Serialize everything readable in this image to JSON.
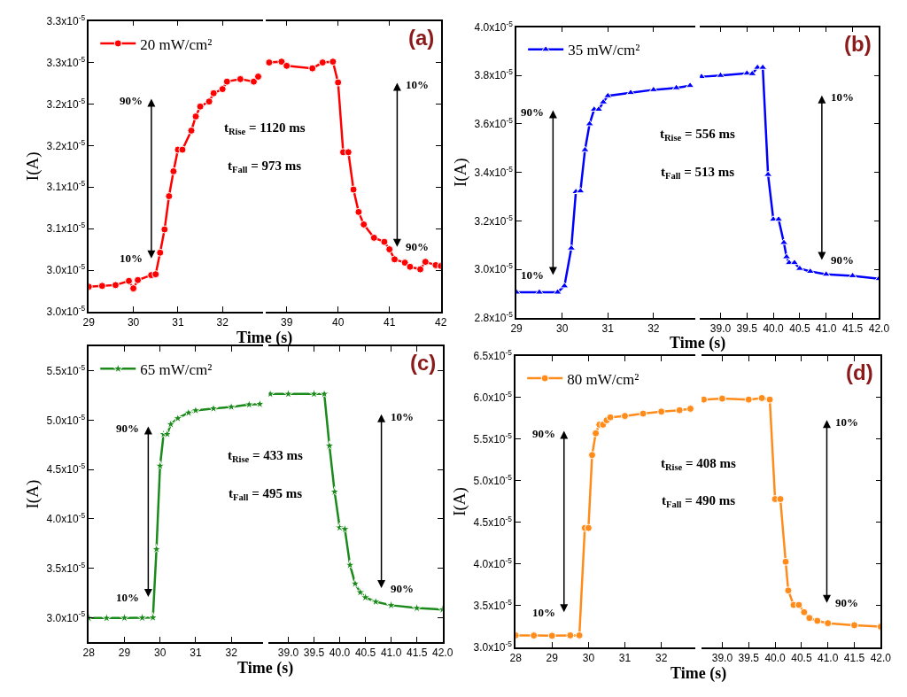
{
  "chart_data": [
    {
      "type": "line",
      "xlim": [
        29,
        32.9
      ],
      "xticks": [
        29,
        30,
        31,
        32
      ],
      "ylim": [
        2.975e-05,
        3.325e-05
      ],
      "yticks": [
        {
          "value": 2.975e-05,
          "label": "3.0x10$^{-5}$"
        },
        {
          "value": 3.025e-05,
          "label": "3.0x10$^{-5}$"
        },
        {
          "value": 3.075e-05,
          "label": "3.1x10$^{-5}$"
        },
        {
          "value": 3.125e-05,
          "label": "3.1x10$^{-5}$"
        },
        {
          "value": 3.175e-05,
          "label": "3.2x10$^{-5}$"
        },
        {
          "value": 3.225e-05,
          "label": "3.2x10$^{-5}$"
        },
        {
          "value": 3.275e-05,
          "label": "3.3x10$^{-5}$"
        },
        {
          "value": 3.325e-05,
          "label": "3.3x10$^{-5}$"
        }
      ],
      "xlabel": "Time (s)",
      "ylabel": "I(A)",
      "legend": "top left",
      "marker": "circle",
      "line_style": "solid",
      "series": [
        {
          "name": "20 mW/cm²",
          "color": "#ff0000",
          "x": [
            29.0,
            29.3,
            29.6,
            29.9,
            30.0,
            30.1,
            30.4,
            30.5,
            30.6,
            30.7,
            30.8,
            30.9,
            31.0,
            31.1,
            31.3,
            31.4,
            31.5,
            31.7,
            31.8,
            32.0,
            32.1,
            32.4,
            32.7,
            32.8
          ],
          "values": [
            3.005e-05,
            3.006e-05,
            3.007e-05,
            3.012e-05,
            3.003e-05,
            3.013e-05,
            3.019e-05,
            3.02e-05,
            3.046e-05,
            3.074e-05,
            3.114e-05,
            3.144e-05,
            3.17e-05,
            3.17e-05,
            3.193e-05,
            3.21e-05,
            3.222e-05,
            3.228e-05,
            3.238e-05,
            3.243e-05,
            3.252e-05,
            3.255e-05,
            3.252e-05,
            3.258e-05
          ]
        }
      ],
      "annotations": [
        "90%",
        "10%",
        "t$_{Rise}$ = 1120 ms",
        "t$_{Fall}$ = 973 ms"
      ]
    },
    {
      "type": "line",
      "title": "(a)",
      "xlim": [
        38.6,
        42
      ],
      "xticks": [
        39,
        40,
        41,
        42
      ],
      "ylim": [
        2.975e-05,
        3.325e-05
      ],
      "yticks": [
        {
          "value": 2.975e-05,
          "label": null
        },
        {
          "value": 3.025e-05,
          "label": null
        },
        {
          "value": 3.075e-05,
          "label": null
        },
        {
          "value": 3.125e-05,
          "label": null
        },
        {
          "value": 3.175e-05,
          "label": null
        },
        {
          "value": 3.225e-05,
          "label": null
        },
        {
          "value": 3.275e-05,
          "label": null
        },
        {
          "value": 3.325e-05,
          "label": null
        }
      ],
      "tick_labels": "x",
      "marker": "circle",
      "line_style": "solid",
      "series": [
        {
          "color": "#ff0000",
          "x": [
            38.66,
            38.9,
            39.0,
            39.5,
            39.7,
            39.9,
            40.0,
            40.1,
            40.2,
            40.3,
            40.4,
            40.5,
            40.7,
            40.9,
            41.0,
            41.1,
            41.3,
            41.4,
            41.6,
            41.7,
            41.9,
            42.0
          ],
          "values": [
            3.275e-05,
            3.276e-05,
            3.271e-05,
            3.268e-05,
            3.275e-05,
            3.276e-05,
            3.251e-05,
            3.167e-05,
            3.167e-05,
            3.122e-05,
            3.095e-05,
            3.08e-05,
            3.064e-05,
            3.059e-05,
            3.05e-05,
            3.038e-05,
            3.034e-05,
            3.029e-05,
            3.026e-05,
            3.035e-05,
            3.031e-05,
            3.03e-05
          ]
        }
      ],
      "annotations": [
        "10%",
        "90%"
      ]
    },
    {
      "type": "line",
      "xlim": [
        29,
        32.92
      ],
      "xticks": [
        29,
        30,
        31,
        32
      ],
      "ylim": [
        2.8e-05,
        4e-05
      ],
      "yticks": [
        {
          "value": 2.8e-05,
          "label": "2.8x10$^{-5}$"
        },
        {
          "value": 3e-05,
          "label": "3.0x10$^{-5}$"
        },
        {
          "value": 3.2e-05,
          "label": "3.2x10$^{-5}$"
        },
        {
          "value": 3.4e-05,
          "label": "3.4x10$^{-5}$"
        },
        {
          "value": 3.6e-05,
          "label": "3.6x10$^{-5}$"
        },
        {
          "value": 3.8e-05,
          "label": "3.8x10$^{-5}$"
        },
        {
          "value": 4e-05,
          "label": "4.0x10$^{-5}$"
        }
      ],
      "xlabel": "Time (s)",
      "ylabel": "I(A)",
      "legend": "top left",
      "marker": "triangle",
      "line_style": "solid",
      "series": [
        {
          "name": "35 mW/cm²",
          "color": "#0000ff",
          "x": [
            29.0,
            29.5,
            29.9,
            30.05,
            30.2,
            30.3,
            30.4,
            30.5,
            30.6,
            30.7,
            30.8,
            30.9,
            31.0,
            31.5,
            32.0,
            32.5,
            32.8
          ],
          "values": [
            2.905e-05,
            2.905e-05,
            2.905e-05,
            2.931e-05,
            3.087e-05,
            3.32e-05,
            3.323e-05,
            3.493e-05,
            3.6e-05,
            3.66e-05,
            3.66e-05,
            3.69e-05,
            3.716e-05,
            3.729e-05,
            3.741e-05,
            3.749e-05,
            3.758e-05
          ]
        }
      ],
      "annotations": [
        "90%",
        "10%",
        "t$_{Rise}$ = 556 ms",
        "t$_{Fall}$ = 513 ms"
      ]
    },
    {
      "type": "line",
      "title": "(b)",
      "xlim": [
        38.61,
        42.0
      ],
      "xticks": [
        {
          "value": 39,
          "label": "39.0"
        },
        {
          "value": 39.5,
          "label": "39.5"
        },
        {
          "value": 40,
          "label": "40.0"
        },
        {
          "value": 40.5,
          "label": "40.5"
        },
        {
          "value": 41,
          "label": "41.0"
        },
        {
          "value": 41.5,
          "label": "41.5"
        },
        {
          "value": 42,
          "label": "42.0"
        }
      ],
      "ylim": [
        2.8e-05,
        4e-05
      ],
      "yticks": [
        {
          "value": 2.8e-05,
          "label": null
        },
        {
          "value": 3e-05,
          "label": null
        },
        {
          "value": 3.2e-05,
          "label": null
        },
        {
          "value": 3.4e-05,
          "label": null
        },
        {
          "value": 3.6e-05,
          "label": null
        },
        {
          "value": 3.8e-05,
          "label": null
        },
        {
          "value": 4e-05,
          "label": null
        }
      ],
      "tick_labels": "x",
      "marker": "triangle",
      "line_style": "solid",
      "series": [
        {
          "color": "#0000ff",
          "x": [
            38.64,
            39.0,
            39.5,
            39.6,
            39.7,
            39.8,
            39.9,
            40.0,
            40.1,
            40.2,
            40.25,
            40.3,
            40.4,
            40.5,
            40.7,
            41.0,
            41.5,
            42.0
          ],
          "values": [
            3.795e-05,
            3.8e-05,
            3.809e-05,
            3.807e-05,
            3.833e-05,
            3.833e-05,
            3.391e-05,
            3.206e-05,
            3.206e-05,
            3.11e-05,
            3.051e-05,
            3.027e-05,
            3.027e-05,
            3.003e-05,
            2.991e-05,
            2.979e-05,
            2.973e-05,
            2.961e-05
          ]
        }
      ],
      "annotations": [
        "10%",
        "90%"
      ]
    },
    {
      "type": "line",
      "xlim": [
        28,
        32.88
      ],
      "xticks": [
        28,
        29,
        30,
        31,
        32
      ],
      "ylim": [
        2.75e-05,
        5.75e-05
      ],
      "yticks": [
        {
          "value": 3e-05,
          "label": "3.0x10$^{-5}$"
        },
        {
          "value": 3.5e-05,
          "label": "3.5x10$^{-5}$"
        },
        {
          "value": 4e-05,
          "label": "4.0x10$^{-5}$"
        },
        {
          "value": 4.5e-05,
          "label": "4.5x10$^{-5}$"
        },
        {
          "value": 5e-05,
          "label": "5.0x10$^{-5}$"
        },
        {
          "value": 5.5e-05,
          "label": "5.5x10$^{-5}$"
        }
      ],
      "xlabel": "Time (s)",
      "ylabel": "I(A)",
      "legend": "top left",
      "marker": "star",
      "line_style": "solid",
      "series": [
        {
          "name": "65 mW/cm²",
          "color": "#1a8a1a",
          "x": [
            28.0,
            28.5,
            29.0,
            29.5,
            29.8,
            29.9,
            30.0,
            30.1,
            30.2,
            30.3,
            30.5,
            30.8,
            31.0,
            31.5,
            32.0,
            32.5,
            32.8
          ],
          "values": [
            2.995e-05,
            2.995e-05,
            2.997e-05,
            2.998e-05,
            3e-05,
            3.693e-05,
            4.538e-05,
            4.859e-05,
            4.86e-05,
            4.96e-05,
            5.02e-05,
            5.077e-05,
            5.1e-05,
            5.12e-05,
            5.136e-05,
            5.16e-05,
            5.165e-05
          ]
        }
      ],
      "annotations": [
        "90%",
        "10%",
        "t$_{Rise}$ = 433 ms",
        "t$_{Fall}$ = 495 ms"
      ]
    },
    {
      "type": "line",
      "title": "(c)",
      "xlim": [
        38.62,
        42.0
      ],
      "xticks": [
        {
          "value": 39,
          "label": "39.0"
        },
        {
          "value": 39.5,
          "label": "39.5"
        },
        {
          "value": 40,
          "label": "40.0"
        },
        {
          "value": 40.5,
          "label": "40.5"
        },
        {
          "value": 41,
          "label": "41.0"
        },
        {
          "value": 41.5,
          "label": "41.5"
        },
        {
          "value": 42,
          "label": "42.0"
        }
      ],
      "ylim": [
        2.75e-05,
        5.75e-05
      ],
      "yticks": [
        {
          "value": 3e-05,
          "label": null
        },
        {
          "value": 3.5e-05,
          "label": null
        },
        {
          "value": 4e-05,
          "label": null
        },
        {
          "value": 4.5e-05,
          "label": null
        },
        {
          "value": 5e-05,
          "label": null
        },
        {
          "value": 5.5e-05,
          "label": null
        }
      ],
      "tick_labels": "x",
      "marker": "star",
      "line_style": "solid",
      "series": [
        {
          "color": "#1a8a1a",
          "x": [
            38.65,
            39.0,
            39.5,
            39.7,
            39.8,
            39.9,
            40.0,
            40.1,
            40.2,
            40.3,
            40.4,
            40.5,
            40.7,
            41.0,
            41.5,
            42.0
          ],
          "values": [
            5.267e-05,
            5.267e-05,
            5.267e-05,
            5.267e-05,
            4.742e-05,
            4.276e-05,
            3.912e-05,
            3.897e-05,
            3.533e-05,
            3.344e-05,
            3.256e-05,
            3.204e-05,
            3.16e-05,
            3.125e-05,
            3.096e-05,
            3.082e-05
          ]
        }
      ],
      "annotations": [
        "10%",
        "90%"
      ]
    },
    {
      "type": "line",
      "xlim": [
        28,
        32.94
      ],
      "xticks": [
        28,
        29,
        30,
        31,
        32
      ],
      "ylim": [
        3e-05,
        6.5e-05
      ],
      "yticks": [
        {
          "value": 3e-05,
          "label": "3.0x10$^{-5}$"
        },
        {
          "value": 3.5e-05,
          "label": "3.5x10$^{-5}$"
        },
        {
          "value": 4e-05,
          "label": "4.0x10$^{-5}$"
        },
        {
          "value": 4.5e-05,
          "label": "4.5x10$^{-5}$"
        },
        {
          "value": 5e-05,
          "label": "5.0x10$^{-5}$"
        },
        {
          "value": 5.5e-05,
          "label": "5.5x10$^{-5}$"
        },
        {
          "value": 6e-05,
          "label": "6.0x10$^{-5}$"
        },
        {
          "value": 6.5e-05,
          "label": "6.5x10$^{-5}$"
        }
      ],
      "xlabel": "Time (s)",
      "ylabel": "I(A)",
      "legend": "top left",
      "marker": "circle",
      "line_style": "solid",
      "series": [
        {
          "name": "80 mW/cm²",
          "color": "#ff8c1a",
          "x": [
            28.0,
            28.5,
            29.0,
            29.5,
            29.75,
            29.9,
            30.0,
            30.1,
            30.2,
            30.3,
            30.4,
            30.5,
            30.6,
            31.0,
            31.5,
            32.0,
            32.5,
            32.8
          ],
          "values": [
            3.145e-05,
            3.143e-05,
            3.14e-05,
            3.145e-05,
            3.145e-05,
            4.434e-05,
            4.434e-05,
            5.31e-05,
            5.571e-05,
            5.675e-05,
            5.675e-05,
            5.727e-05,
            5.762e-05,
            5.779e-05,
            5.807e-05,
            5.831e-05,
            5.848e-05,
            5.866e-05
          ]
        }
      ],
      "annotations": [
        "90%",
        "10%",
        "t$_{Rise}$ = 408 ms",
        "t$_{Fall}$ = 490 ms"
      ]
    },
    {
      "type": "line",
      "title": "(d)",
      "xlim": [
        38.61,
        42.0
      ],
      "xticks": [
        {
          "value": 39,
          "label": "39.0"
        },
        {
          "value": 39.5,
          "label": "39.5"
        },
        {
          "value": 40,
          "label": "40.0"
        },
        {
          "value": 40.5,
          "label": "40.5"
        },
        {
          "value": 41,
          "label": "41.0"
        },
        {
          "value": 41.5,
          "label": "41.5"
        },
        {
          "value": 42,
          "label": "42.0"
        }
      ],
      "ylim": [
        3e-05,
        6.5e-05
      ],
      "yticks": [
        {
          "value": 3e-05,
          "label": null
        },
        {
          "value": 3.5e-05,
          "label": null
        },
        {
          "value": 4e-05,
          "label": null
        },
        {
          "value": 4.5e-05,
          "label": null
        },
        {
          "value": 5e-05,
          "label": null
        },
        {
          "value": 5.5e-05,
          "label": null
        },
        {
          "value": 6e-05,
          "label": null
        },
        {
          "value": 6.5e-05,
          "label": null
        }
      ],
      "tick_labels": "x",
      "marker": "circle",
      "line_style": "solid",
      "series": [
        {
          "color": "#ff8c1a",
          "x": [
            38.65,
            39.0,
            39.5,
            39.75,
            39.9,
            40.0,
            40.1,
            40.2,
            40.25,
            40.35,
            40.45,
            40.55,
            40.65,
            40.8,
            41.0,
            41.5,
            42.0
          ],
          "values": [
            5.976e-05,
            5.987e-05,
            5.976e-05,
            5.994e-05,
            5.976e-05,
            4.781e-05,
            4.781e-05,
            4.029e-05,
            3.683e-05,
            3.51e-05,
            3.51e-05,
            3.423e-05,
            3.353e-05,
            3.319e-05,
            3.291e-05,
            3.267e-05,
            3.249e-05
          ]
        }
      ],
      "annotations": [
        "10%",
        "90%"
      ]
    }
  ]
}
